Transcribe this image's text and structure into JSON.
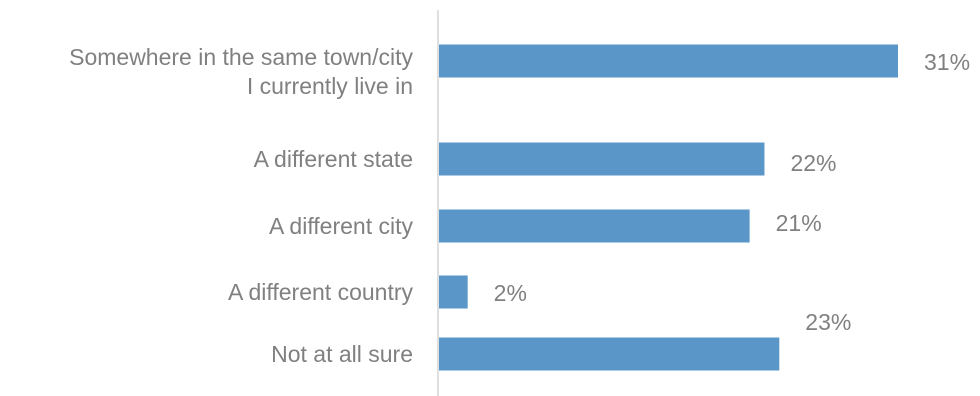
{
  "chart_data": {
    "type": "bar",
    "orientation": "horizontal",
    "categories": [
      [
        "Somewhere in the same town/city",
        "I currently live in"
      ],
      [
        "A different state"
      ],
      [
        "A different city"
      ],
      [
        "A different country"
      ],
      [
        "Not at all sure"
      ]
    ],
    "values": [
      31,
      22,
      21,
      2,
      23
    ],
    "value_labels": [
      "31%",
      "22%",
      "21%",
      "2%",
      "23%"
    ],
    "xlim": [
      0,
      31
    ],
    "grid": false,
    "legend": "none",
    "colors": {
      "bar": "#5b96c8",
      "text": "#808080",
      "axis": "#bfbfbf"
    }
  }
}
